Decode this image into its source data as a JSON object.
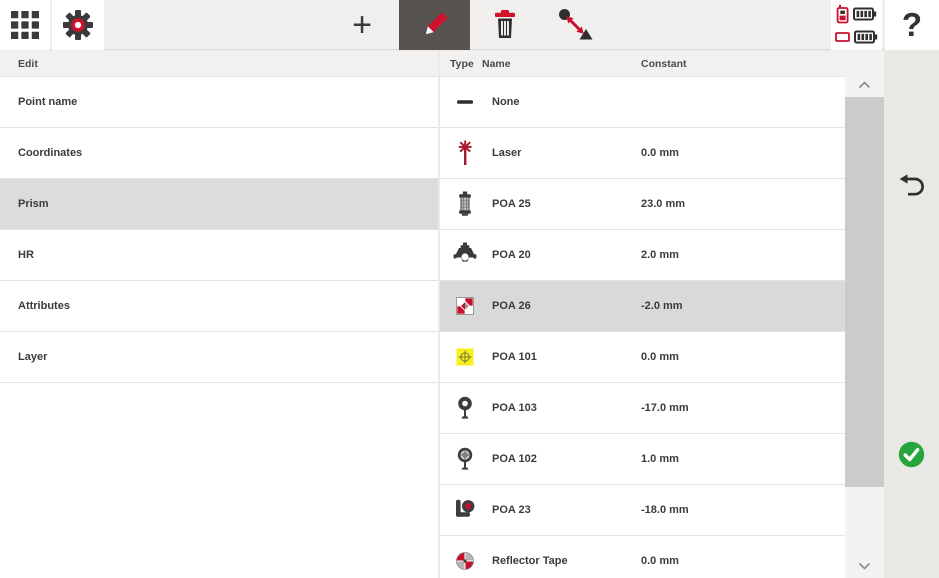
{
  "toolbar": {
    "plus_label": "+",
    "help_label": "?",
    "buttons": {
      "apps": "app-grid",
      "settings": "settings-gear",
      "add": "add-new",
      "edit": "edit-pencil-selected",
      "delete": "delete-trash",
      "measure": "measure-distance"
    },
    "status": {
      "controller_battery_bars": 4,
      "instrument_battery_bars": 4
    }
  },
  "left_panel": {
    "header": "Edit",
    "items": [
      {
        "label": "Point name",
        "selected": false
      },
      {
        "label": "Coordinates",
        "selected": false
      },
      {
        "label": "Prism",
        "selected": true
      },
      {
        "label": "HR",
        "selected": false
      },
      {
        "label": "Attributes",
        "selected": false
      },
      {
        "label": "Layer",
        "selected": false
      }
    ]
  },
  "prism_list": {
    "columns": {
      "type": "Type",
      "name": "Name",
      "constant": "Constant"
    },
    "rows": [
      {
        "icon": "none-dash-icon",
        "name": "None",
        "constant": "",
        "selected": false
      },
      {
        "icon": "laser-icon",
        "name": "Laser",
        "constant": "0.0 mm",
        "selected": false
      },
      {
        "icon": "poa25-prism-icon",
        "name": "POA 25",
        "constant": "23.0 mm",
        "selected": false
      },
      {
        "icon": "poa20-prism-icon",
        "name": "POA 20",
        "constant": "2.0 mm",
        "selected": false
      },
      {
        "icon": "poa26-target-icon",
        "name": "POA 26",
        "constant": "-2.0 mm",
        "selected": true
      },
      {
        "icon": "poa101-target-icon",
        "name": "POA 101",
        "constant": "0.0 mm",
        "selected": false
      },
      {
        "icon": "poa103-prism-icon",
        "name": "POA 103",
        "constant": "-17.0 mm",
        "selected": false
      },
      {
        "icon": "poa102-prism-icon",
        "name": "POA 102",
        "constant": "1.0 mm",
        "selected": false
      },
      {
        "icon": "poa23-prism-icon",
        "name": "POA 23",
        "constant": "-18.0 mm",
        "selected": false
      },
      {
        "icon": "reflector-tape-icon",
        "name": "Reflector Tape",
        "constant": "0.0 mm",
        "selected": false
      }
    ]
  },
  "sidebar": {
    "undo": "undo-arrow",
    "confirm": "green-check"
  },
  "colors": {
    "accent_red": "#c8102e",
    "laser_red": "#a6192e",
    "selected_tile": "#575350",
    "row_highlight": "#dcdcdc",
    "confirm_green": "#26a53c",
    "target_yellow": "#f8ed1f"
  }
}
